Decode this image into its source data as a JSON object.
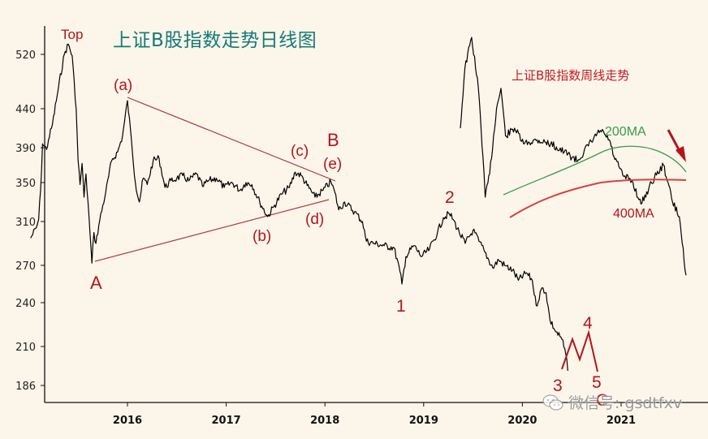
{
  "chart_data": {
    "type": "line",
    "title": "上证B股指数走势日线图",
    "inset_title": "上证B股指数周线走势",
    "xlabel": "",
    "ylabel": "",
    "y_ticks": [
      520,
      440,
      390,
      350,
      310,
      270,
      240,
      210,
      186
    ],
    "x_ticks": [
      "2016",
      "2017",
      "2018",
      "2019",
      "2020",
      "2021"
    ],
    "grid": false,
    "series": [
      {
        "name": "上证B股指数 (daily)",
        "color": "#000000",
        "points": [
          [
            2015.02,
            295
          ],
          [
            2015.08,
            305
          ],
          [
            2015.1,
            312
          ],
          [
            2015.12,
            342
          ],
          [
            2015.14,
            395
          ],
          [
            2015.18,
            388
          ],
          [
            2015.2,
            400
          ],
          [
            2015.24,
            420
          ],
          [
            2015.3,
            470
          ],
          [
            2015.36,
            520
          ],
          [
            2015.4,
            535
          ],
          [
            2015.44,
            518
          ],
          [
            2015.48,
            440
          ],
          [
            2015.5,
            375
          ],
          [
            2015.52,
            348
          ],
          [
            2015.54,
            372
          ],
          [
            2015.56,
            335
          ],
          [
            2015.58,
            360
          ],
          [
            2015.6,
            330
          ],
          [
            2015.62,
            300
          ],
          [
            2015.64,
            272
          ],
          [
            2015.66,
            300
          ],
          [
            2015.68,
            290
          ],
          [
            2015.72,
            312
          ],
          [
            2015.78,
            340
          ],
          [
            2015.84,
            375
          ],
          [
            2015.9,
            385
          ],
          [
            2015.95,
            405
          ],
          [
            2016.0,
            452
          ],
          [
            2016.04,
            400
          ],
          [
            2016.08,
            350
          ],
          [
            2016.12,
            330
          ],
          [
            2016.16,
            355
          ],
          [
            2016.2,
            348
          ],
          [
            2016.26,
            375
          ],
          [
            2016.32,
            378
          ],
          [
            2016.38,
            345
          ],
          [
            2016.44,
            352
          ],
          [
            2016.5,
            355
          ],
          [
            2016.56,
            358
          ],
          [
            2016.62,
            352
          ],
          [
            2016.7,
            360
          ],
          [
            2016.76,
            346
          ],
          [
            2016.82,
            352
          ],
          [
            2016.9,
            355
          ],
          [
            2016.98,
            345
          ],
          [
            2017.06,
            350
          ],
          [
            2017.14,
            342
          ],
          [
            2017.2,
            350
          ],
          [
            2017.26,
            348
          ],
          [
            2017.34,
            330
          ],
          [
            2017.42,
            315
          ],
          [
            2017.48,
            325
          ],
          [
            2017.56,
            338
          ],
          [
            2017.64,
            345
          ],
          [
            2017.7,
            362
          ],
          [
            2017.76,
            358
          ],
          [
            2017.82,
            347
          ],
          [
            2017.9,
            335
          ],
          [
            2017.98,
            342
          ],
          [
            2018.06,
            351
          ],
          [
            2018.1,
            340
          ],
          [
            2018.14,
            322
          ],
          [
            2018.2,
            330
          ],
          [
            2018.3,
            320
          ],
          [
            2018.38,
            310
          ],
          [
            2018.42,
            292
          ],
          [
            2018.5,
            290
          ],
          [
            2018.6,
            288
          ],
          [
            2018.7,
            286
          ],
          [
            2018.76,
            265
          ],
          [
            2018.78,
            255
          ],
          [
            2018.82,
            278
          ],
          [
            2018.9,
            288
          ],
          [
            2018.98,
            278
          ],
          [
            2019.06,
            285
          ],
          [
            2019.14,
            300
          ],
          [
            2019.2,
            314
          ],
          [
            2019.26,
            318
          ],
          [
            2019.3,
            312
          ],
          [
            2019.36,
            300
          ],
          [
            2019.42,
            290
          ],
          [
            2019.5,
            302
          ],
          [
            2019.56,
            292
          ],
          [
            2019.62,
            282
          ],
          [
            2019.7,
            268
          ],
          [
            2019.76,
            275
          ],
          [
            2019.82,
            270
          ],
          [
            2019.9,
            266
          ],
          [
            2019.96,
            258
          ],
          [
            2020.04,
            264
          ],
          [
            2020.1,
            258
          ],
          [
            2020.14,
            238
          ],
          [
            2020.2,
            252
          ],
          [
            2020.24,
            248
          ],
          [
            2020.28,
            228
          ],
          [
            2020.34,
            220
          ],
          [
            2020.4,
            215
          ],
          [
            2020.44,
            205
          ],
          [
            2020.46,
            195
          ]
        ]
      },
      {
        "name": "上证B股指数 (weekly inset)",
        "color": "#000000",
        "points": [
          [
            0,
            415
          ],
          [
            0.02,
            500
          ],
          [
            0.05,
            545
          ],
          [
            0.08,
            470
          ],
          [
            0.1,
            380
          ],
          [
            0.11,
            335
          ],
          [
            0.13,
            360
          ],
          [
            0.16,
            440
          ],
          [
            0.18,
            470
          ],
          [
            0.2,
            405
          ],
          [
            0.24,
            415
          ],
          [
            0.28,
            395
          ],
          [
            0.34,
            400
          ],
          [
            0.4,
            395
          ],
          [
            0.46,
            385
          ],
          [
            0.52,
            375
          ],
          [
            0.58,
            398
          ],
          [
            0.62,
            412
          ],
          [
            0.66,
            400
          ],
          [
            0.68,
            380
          ],
          [
            0.72,
            358
          ],
          [
            0.76,
            352
          ],
          [
            0.8,
            328
          ],
          [
            0.86,
            356
          ],
          [
            0.9,
            370
          ],
          [
            0.92,
            350
          ],
          [
            0.94,
            330
          ],
          [
            0.97,
            315
          ],
          [
            1.0,
            262
          ]
        ]
      },
      {
        "name": "200MA",
        "color": "#3a9a50",
        "label": "200MA"
      },
      {
        "name": "400MA",
        "color": "#d8403f",
        "label": "400MA"
      }
    ],
    "annotations": {
      "top": "Top",
      "wave_labels": [
        "(a)",
        "(b)",
        "(c)",
        "(d)",
        "(e)",
        "A",
        "B",
        "1",
        "2",
        "3",
        "4",
        "5",
        "C"
      ],
      "triangle": {
        "upper": "(a) → (e)",
        "lower": "A → (d)"
      },
      "arrow": "down-right red arrow"
    }
  },
  "watermark": {
    "text": "微信号: gsdtfxv"
  },
  "colors": {
    "background": "#fcf5ea",
    "title": "#137a78",
    "annotation": "#b5141b",
    "ma200": "#3a9a50",
    "ma400": "#d8403f",
    "triangle": "#b03a3a"
  }
}
